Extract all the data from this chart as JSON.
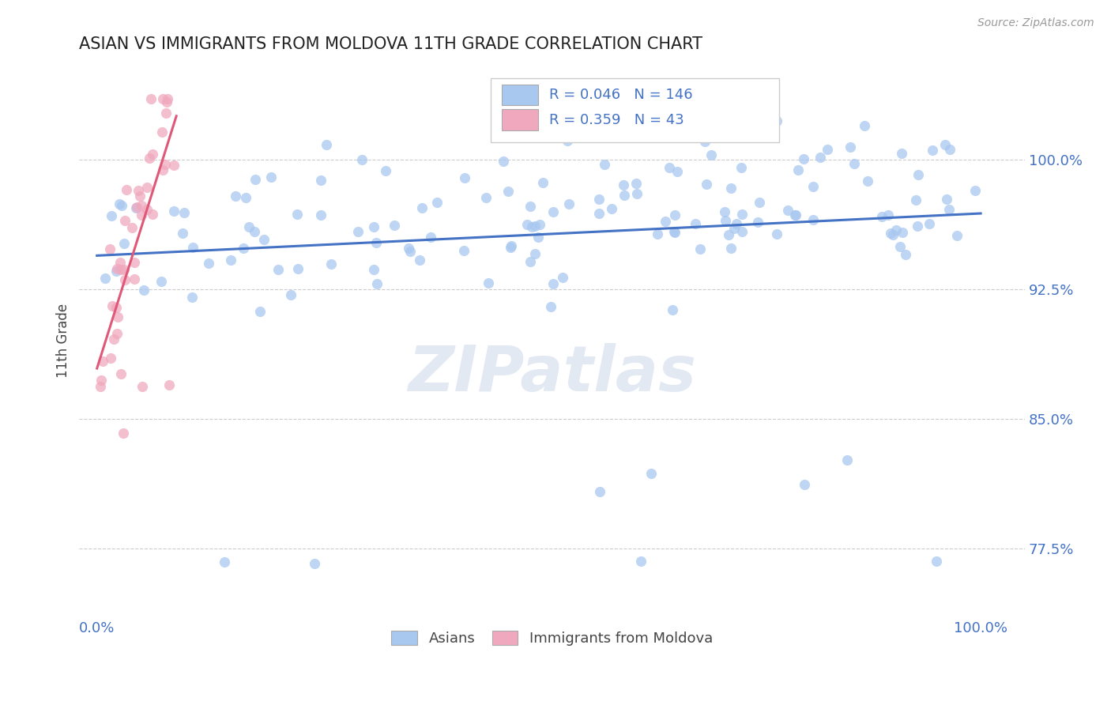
{
  "title": "ASIAN VS IMMIGRANTS FROM MOLDOVA 11TH GRADE CORRELATION CHART",
  "source_text": "Source: ZipAtlas.com",
  "ylabel": "11th Grade",
  "watermark": "ZIPatlas",
  "legend_entries": [
    {
      "label": "Asians",
      "R": 0.046,
      "N": 146,
      "color": "#a8c8f0"
    },
    {
      "label": "Immigrants from Moldova",
      "R": 0.359,
      "N": 43,
      "color": "#f0a8be"
    }
  ],
  "ytick_labels": [
    "77.5%",
    "85.0%",
    "92.5%",
    "100.0%"
  ],
  "ytick_values": [
    0.775,
    0.85,
    0.925,
    1.0
  ],
  "xtick_labels": [
    "0.0%",
    "100.0%"
  ],
  "xtick_values": [
    0.0,
    1.0
  ],
  "xlim": [
    -0.02,
    1.05
  ],
  "ylim": [
    0.735,
    1.055
  ],
  "title_color": "#222222",
  "axis_label_color": "#4472c4",
  "tick_label_color": "#4472c4",
  "grid_color": "#cccccc",
  "blue_scatter_color": "#a8c8f0",
  "pink_scatter_color": "#f0a8be",
  "blue_line_color": "#4472c4",
  "pink_line_color": "#e05878",
  "scatter_size": 90,
  "scatter_alpha": 0.75
}
